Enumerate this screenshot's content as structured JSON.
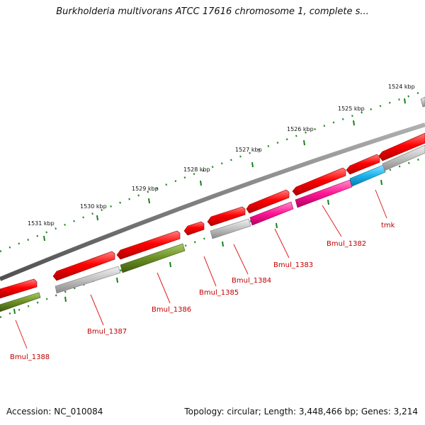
{
  "title": "Burkholderia multivorans ATCC 17616 chromosome 1, complete s...",
  "footer": {
    "accession": "Accession: NC_010084",
    "summary": "Topology: circular; Length: 3,448,466 bp; Genes: 3,214"
  },
  "colors": {
    "backbone": "#7a7a7a",
    "red_gene": "#ff0000",
    "gray_gene": "#bdbdbd",
    "olive_gene": "#6b8e23",
    "magenta_gene": "#ff1493",
    "cyan_gene": "#18b4ee",
    "tick": "#1a7f1a",
    "label": "#c00000"
  },
  "scale_labels": [
    "1524 kbp",
    "1525 kbp",
    "1526 kbp",
    "1527 kbp",
    "1528 kbp",
    "1529 kbp",
    "1530 kbp",
    "1531 kbp"
  ],
  "gene_labels": [
    "tmk",
    "Bmul_1382",
    "Bmul_1383",
    "Bmul_1384",
    "Bmul_1385",
    "Bmul_1386",
    "Bmul_1387",
    "Bmul_1388"
  ]
}
